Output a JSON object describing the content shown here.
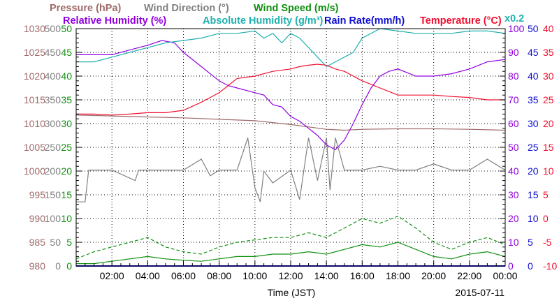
{
  "chart_data": {
    "type": "line",
    "xlabel": "Time (JST)",
    "date_label": "2015-07-11",
    "x_ticks": [
      "02:00",
      "04:00",
      "06:00",
      "08:00",
      "10:00",
      "12:00",
      "14:00",
      "16:00",
      "18:00",
      "20:00",
      "22:00",
      "00:00"
    ],
    "x_range_hours": [
      0,
      24
    ],
    "grid": true,
    "legend_placement": "top",
    "legend_row1": [
      {
        "id": "pressure",
        "label": "Pressure (hPa)",
        "color": "#a06a6a"
      },
      {
        "id": "wind_direction",
        "label": "Wind Direction (°)",
        "color": "#808080"
      },
      {
        "id": "wind_speed",
        "label": "Wind Speed (m/s)",
        "color": "#109010"
      }
    ],
    "legend_row2": [
      {
        "id": "humidity",
        "label": "Relative Humidity (%)",
        "color": "#9000e0"
      },
      {
        "id": "abs_humidity",
        "label": "Absolute Humidity (g/m³)",
        "color": "#20b0b0"
      },
      {
        "id": "rain",
        "label": "Rain Rate(mm/h)",
        "color": "#1010d0"
      },
      {
        "id": "temperature",
        "label": "Temperature (°C)",
        "color": "#f01030"
      }
    ],
    "abs_humidity_scale_note": "x0.2",
    "axes": {
      "pressure": {
        "min": 980,
        "max": 1030,
        "ticks": [
          "1030",
          "1025",
          "1020",
          "1015",
          "1010",
          "1005",
          "1000",
          "995",
          "990",
          "985",
          "980"
        ],
        "color": "#a06a6a"
      },
      "wind_direction": {
        "min": 0,
        "max": 500,
        "ticks": [
          "500",
          "450",
          "400",
          "350",
          "300",
          "250",
          "200",
          "150",
          "100",
          "50",
          "0"
        ],
        "color": "#808080"
      },
      "wind_speed": {
        "min": 0,
        "max": 50,
        "ticks": [
          "50",
          "45",
          "40",
          "35",
          "30",
          "25",
          "20",
          "15",
          "10",
          "5",
          "0"
        ],
        "color": "#109010"
      },
      "humidity": {
        "min": 0,
        "max": 100,
        "ticks": [
          "100",
          "90",
          "80",
          "70",
          "60",
          "50",
          "40",
          "30",
          "20",
          "10",
          "0"
        ],
        "color": "#9000e0"
      },
      "rain": {
        "min": 0,
        "max": 50,
        "ticks": [
          "50",
          "45",
          "40",
          "35",
          "30",
          "25",
          "20",
          "15",
          "10",
          "5",
          "0"
        ],
        "color": "#1010d0"
      },
      "temperature": {
        "min": -10,
        "max": 40,
        "ticks": [
          "40",
          "35",
          "30",
          "25",
          "20",
          "15",
          "10",
          "5",
          "0",
          "-5",
          "-10"
        ],
        "color": "#f01030"
      }
    },
    "series": [
      {
        "name": "Pressure (hPa)",
        "axis": "pressure",
        "x": [
          0,
          2,
          4,
          6,
          8,
          10,
          12,
          14,
          15,
          16,
          18,
          20,
          22,
          24
        ],
        "y": [
          1011.8,
          1011.6,
          1011.4,
          1011.2,
          1010.9,
          1010.6,
          1009.8,
          1008.8,
          1008.6,
          1008.8,
          1008.9,
          1008.9,
          1008.8,
          1008.6
        ]
      },
      {
        "name": "Wind Direction (°)",
        "axis": "wind_direction",
        "x": [
          0,
          0.5,
          0.7,
          2,
          3.3,
          3.5,
          4,
          5,
          6,
          7,
          7.5,
          8,
          9,
          9.6,
          10,
          10.3,
          10.5,
          11,
          12,
          12.5,
          13,
          13.5,
          14,
          14.2,
          14.5,
          15,
          15.5,
          16,
          17,
          18,
          19,
          20,
          21,
          22,
          23,
          24
        ],
        "y": [
          135,
          135,
          202,
          202,
          180,
          202,
          202,
          202,
          202,
          225,
          190,
          202,
          202,
          270,
          165,
          135,
          200,
          175,
          202,
          140,
          270,
          180,
          270,
          160,
          270,
          202,
          202,
          202,
          210,
          202,
          202,
          215,
          202,
          202,
          225,
          202
        ]
      },
      {
        "name": "Wind Speed (m/s) avg",
        "axis": "wind_speed",
        "x": [
          0,
          1,
          2,
          3,
          4,
          5,
          6,
          7,
          8,
          9,
          10,
          11,
          12,
          13,
          14,
          15,
          16,
          17,
          18,
          19,
          20,
          21,
          22,
          23,
          24
        ],
        "y": [
          0.5,
          0.5,
          1.0,
          1.5,
          2.0,
          1.5,
          1.2,
          1.0,
          1.5,
          2.0,
          2.0,
          2.5,
          2.5,
          3.0,
          2.5,
          3.5,
          4.5,
          4.0,
          5.0,
          3.5,
          2.0,
          1.5,
          2.5,
          3.0,
          2.0
        ]
      },
      {
        "name": "Wind Speed (m/s) gust",
        "axis": "wind_speed",
        "x": [
          0,
          1,
          2,
          3,
          4,
          5,
          6,
          7,
          8,
          9,
          10,
          11,
          12,
          13,
          14,
          15,
          16,
          17,
          18,
          19,
          20,
          21,
          22,
          23,
          24
        ],
        "y": [
          1.5,
          3.0,
          4.0,
          5.0,
          6.0,
          4.0,
          3.0,
          2.5,
          4.0,
          5.0,
          5.5,
          6.0,
          6.0,
          7.0,
          6.0,
          8.0,
          10.0,
          9.0,
          10.5,
          8.0,
          5.0,
          3.5,
          5.0,
          6.0,
          4.5
        ]
      },
      {
        "name": "Relative Humidity (%)",
        "axis": "humidity",
        "x": [
          0,
          1,
          2,
          3,
          4,
          4.8,
          5.5,
          6,
          7,
          8,
          8.5,
          9,
          10,
          10.5,
          11,
          11.5,
          12,
          12.5,
          13,
          13.5,
          14,
          14.5,
          15,
          15.5,
          16,
          16.5,
          17,
          17.5,
          18,
          19,
          20,
          21,
          22,
          23,
          24
        ],
        "y": [
          89,
          89,
          89,
          91,
          93,
          95,
          94,
          90,
          84,
          78,
          76,
          75,
          73,
          72,
          68,
          67,
          63,
          61,
          58,
          55,
          51,
          49,
          53,
          60,
          68,
          75,
          80,
          82,
          83,
          80,
          80,
          81,
          83,
          86,
          87
        ]
      },
      {
        "name": "Absolute Humidity (g/m³)",
        "axis": "wind_speed",
        "x": [
          0,
          1,
          2,
          3,
          4,
          5,
          6,
          7,
          8,
          9,
          10,
          10.5,
          11,
          11.5,
          12,
          12.5,
          13,
          13.5,
          14,
          14.5,
          15,
          15.5,
          16,
          17,
          18,
          19,
          20,
          21,
          22,
          23,
          24
        ],
        "y": [
          43,
          43,
          44,
          45,
          46,
          47,
          47.5,
          48,
          49,
          49,
          49.5,
          48,
          49,
          47,
          49,
          48,
          46,
          44,
          42,
          43,
          44,
          45,
          48,
          50,
          49.5,
          49,
          49,
          49,
          49.5,
          49.5,
          49
        ]
      },
      {
        "name": "Rain Rate(mm/h)",
        "axis": "rain",
        "x": [
          0,
          24
        ],
        "y": [
          0,
          0
        ]
      },
      {
        "name": "Temperature (°C)",
        "axis": "temperature",
        "x": [
          0,
          1,
          2,
          3,
          4,
          5,
          6,
          7,
          7.5,
          8,
          8.5,
          9,
          10,
          11,
          12,
          12.5,
          13,
          13.5,
          14,
          14.5,
          15,
          16,
          17,
          18,
          19,
          20,
          21,
          22,
          23,
          24
        ],
        "y": [
          22,
          22,
          21.8,
          22,
          22.3,
          22.3,
          22.8,
          24.5,
          25.5,
          26.5,
          28,
          29.5,
          30,
          31,
          31.5,
          32,
          32.3,
          32.5,
          32.3,
          31.5,
          31,
          29,
          27.5,
          26,
          26,
          26,
          25.7,
          25.5,
          25,
          25
        ]
      }
    ]
  }
}
